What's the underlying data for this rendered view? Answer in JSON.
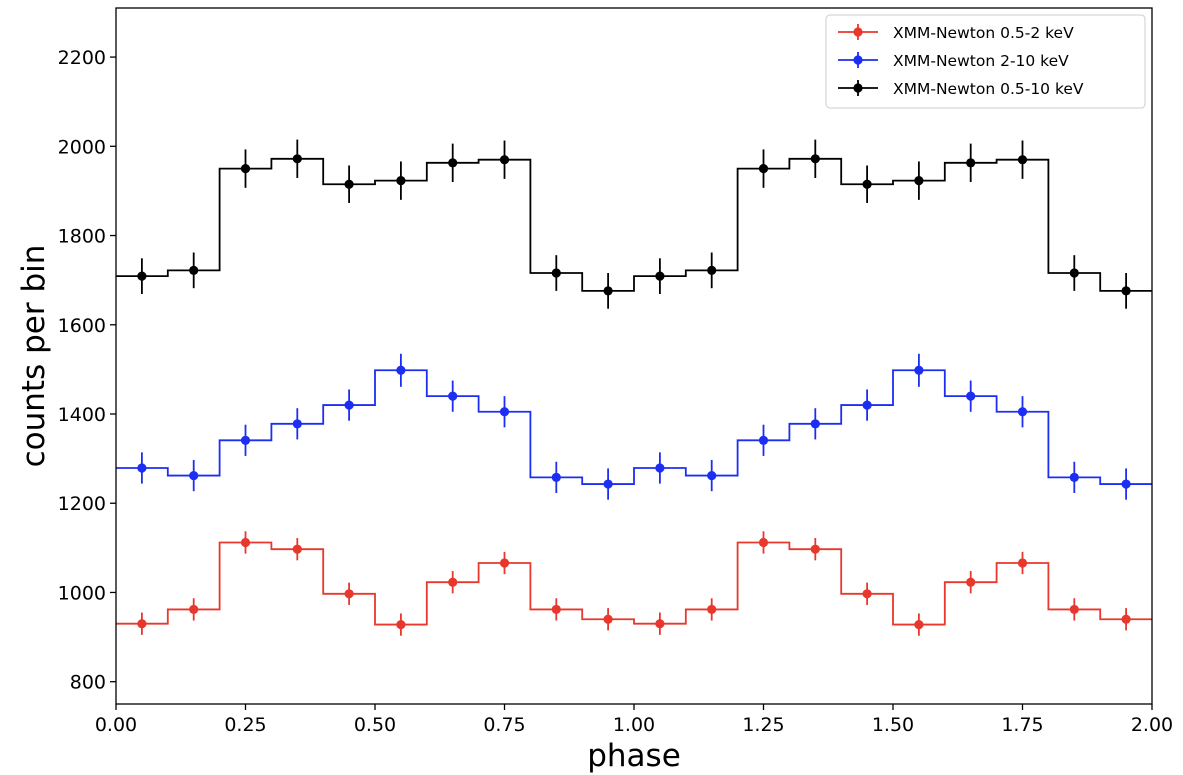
{
  "chart_data": {
    "type": "line",
    "subtype": "step-histogram-with-errorbars",
    "title": "",
    "xlabel": "phase",
    "ylabel": "counts per bin",
    "xlim": [
      0.0,
      2.0
    ],
    "ylim": [
      750,
      2310
    ],
    "xticks": [
      0.0,
      0.25,
      0.5,
      0.75,
      1.0,
      1.25,
      1.5,
      1.75,
      2.0
    ],
    "xtick_labels": [
      "0.00",
      "0.25",
      "0.50",
      "0.75",
      "1.00",
      "1.25",
      "1.50",
      "1.75",
      "2.00"
    ],
    "yticks": [
      800,
      1000,
      1200,
      1400,
      1600,
      1800,
      2000,
      2200
    ],
    "ytick_labels": [
      "800",
      "1000",
      "1200",
      "1400",
      "1600",
      "1800",
      "2000",
      "2200"
    ],
    "grid": false,
    "legend_position": "top-right",
    "x": [
      0.05,
      0.15,
      0.25,
      0.35,
      0.45,
      0.55,
      0.65,
      0.75,
      0.85,
      0.95,
      1.05,
      1.15,
      1.25,
      1.35,
      1.45,
      1.55,
      1.65,
      1.75,
      1.85,
      1.95
    ],
    "bin_width": 0.1,
    "series": [
      {
        "name": "XMM-Newton 0.5-2 keV",
        "color": "#e8372c",
        "values": [
          930,
          962,
          1112,
          1097,
          997,
          928,
          1023,
          1066,
          962,
          940,
          930,
          962,
          1112,
          1097,
          997,
          928,
          1023,
          1066,
          962,
          940
        ],
        "errors": [
          25,
          25,
          25,
          25,
          25,
          25,
          25,
          25,
          25,
          25,
          25,
          25,
          25,
          25,
          25,
          25,
          25,
          25,
          25,
          25
        ]
      },
      {
        "name": "XMM-Newton 2-10 keV",
        "color": "#1c2ef2",
        "values": [
          1279,
          1262,
          1341,
          1378,
          1420,
          1498,
          1440,
          1405,
          1258,
          1243,
          1279,
          1262,
          1341,
          1378,
          1420,
          1498,
          1440,
          1405,
          1258,
          1243
        ],
        "errors": [
          35,
          35,
          35,
          35,
          35,
          37,
          35,
          35,
          35,
          35,
          35,
          35,
          35,
          35,
          35,
          37,
          35,
          35,
          35,
          35
        ]
      },
      {
        "name": "XMM-Newton 0.5-10 keV",
        "color": "#000000",
        "values": [
          1709,
          1722,
          1950,
          1972,
          1915,
          1923,
          1963,
          1970,
          1716,
          1676,
          1709,
          1722,
          1950,
          1972,
          1915,
          1923,
          1963,
          1970,
          1716,
          1676
        ],
        "errors": [
          40,
          40,
          43,
          43,
          42,
          43,
          43,
          43,
          40,
          40,
          40,
          40,
          43,
          43,
          42,
          43,
          43,
          43,
          40,
          40
        ]
      }
    ]
  }
}
